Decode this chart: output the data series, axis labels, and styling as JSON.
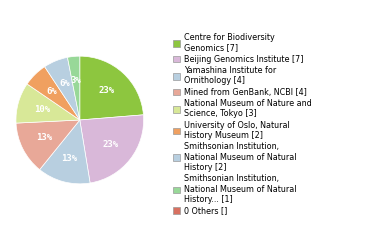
{
  "labels": [
    "Centre for Biodiversity\nGenomics [7]",
    "Beijing Genomics Institute [7]",
    "Yamashina Institute for\nOrnithology [4]",
    "Mined from GenBank, NCBI [4]",
    "National Museum of Nature and\nScience, Tokyo [3]",
    "University of Oslo, Natural\nHistory Museum [2]",
    "Smithsonian Institution,\nNational Museum of Natural\nHistory [2]",
    "Smithsonian Institution,\nNational Museum of Natural\nHistory... [1]",
    "0 Others []"
  ],
  "values": [
    23,
    23,
    13,
    13,
    10,
    6,
    6,
    3,
    0
  ],
  "colors": [
    "#8dc63f",
    "#d9b8d9",
    "#b8cfe0",
    "#e8a898",
    "#d8e898",
    "#f0a060",
    "#b8cfe0",
    "#98d898",
    "#d87060"
  ],
  "pct_labels": [
    "23%",
    "23%",
    "13%",
    "13%",
    "10%",
    "6%",
    "6%",
    "3%",
    ""
  ],
  "startangle": 90,
  "legend_fontsize": 5.8,
  "pct_fontsize": 6.5,
  "figsize": [
    3.8,
    2.4
  ],
  "dpi": 100
}
